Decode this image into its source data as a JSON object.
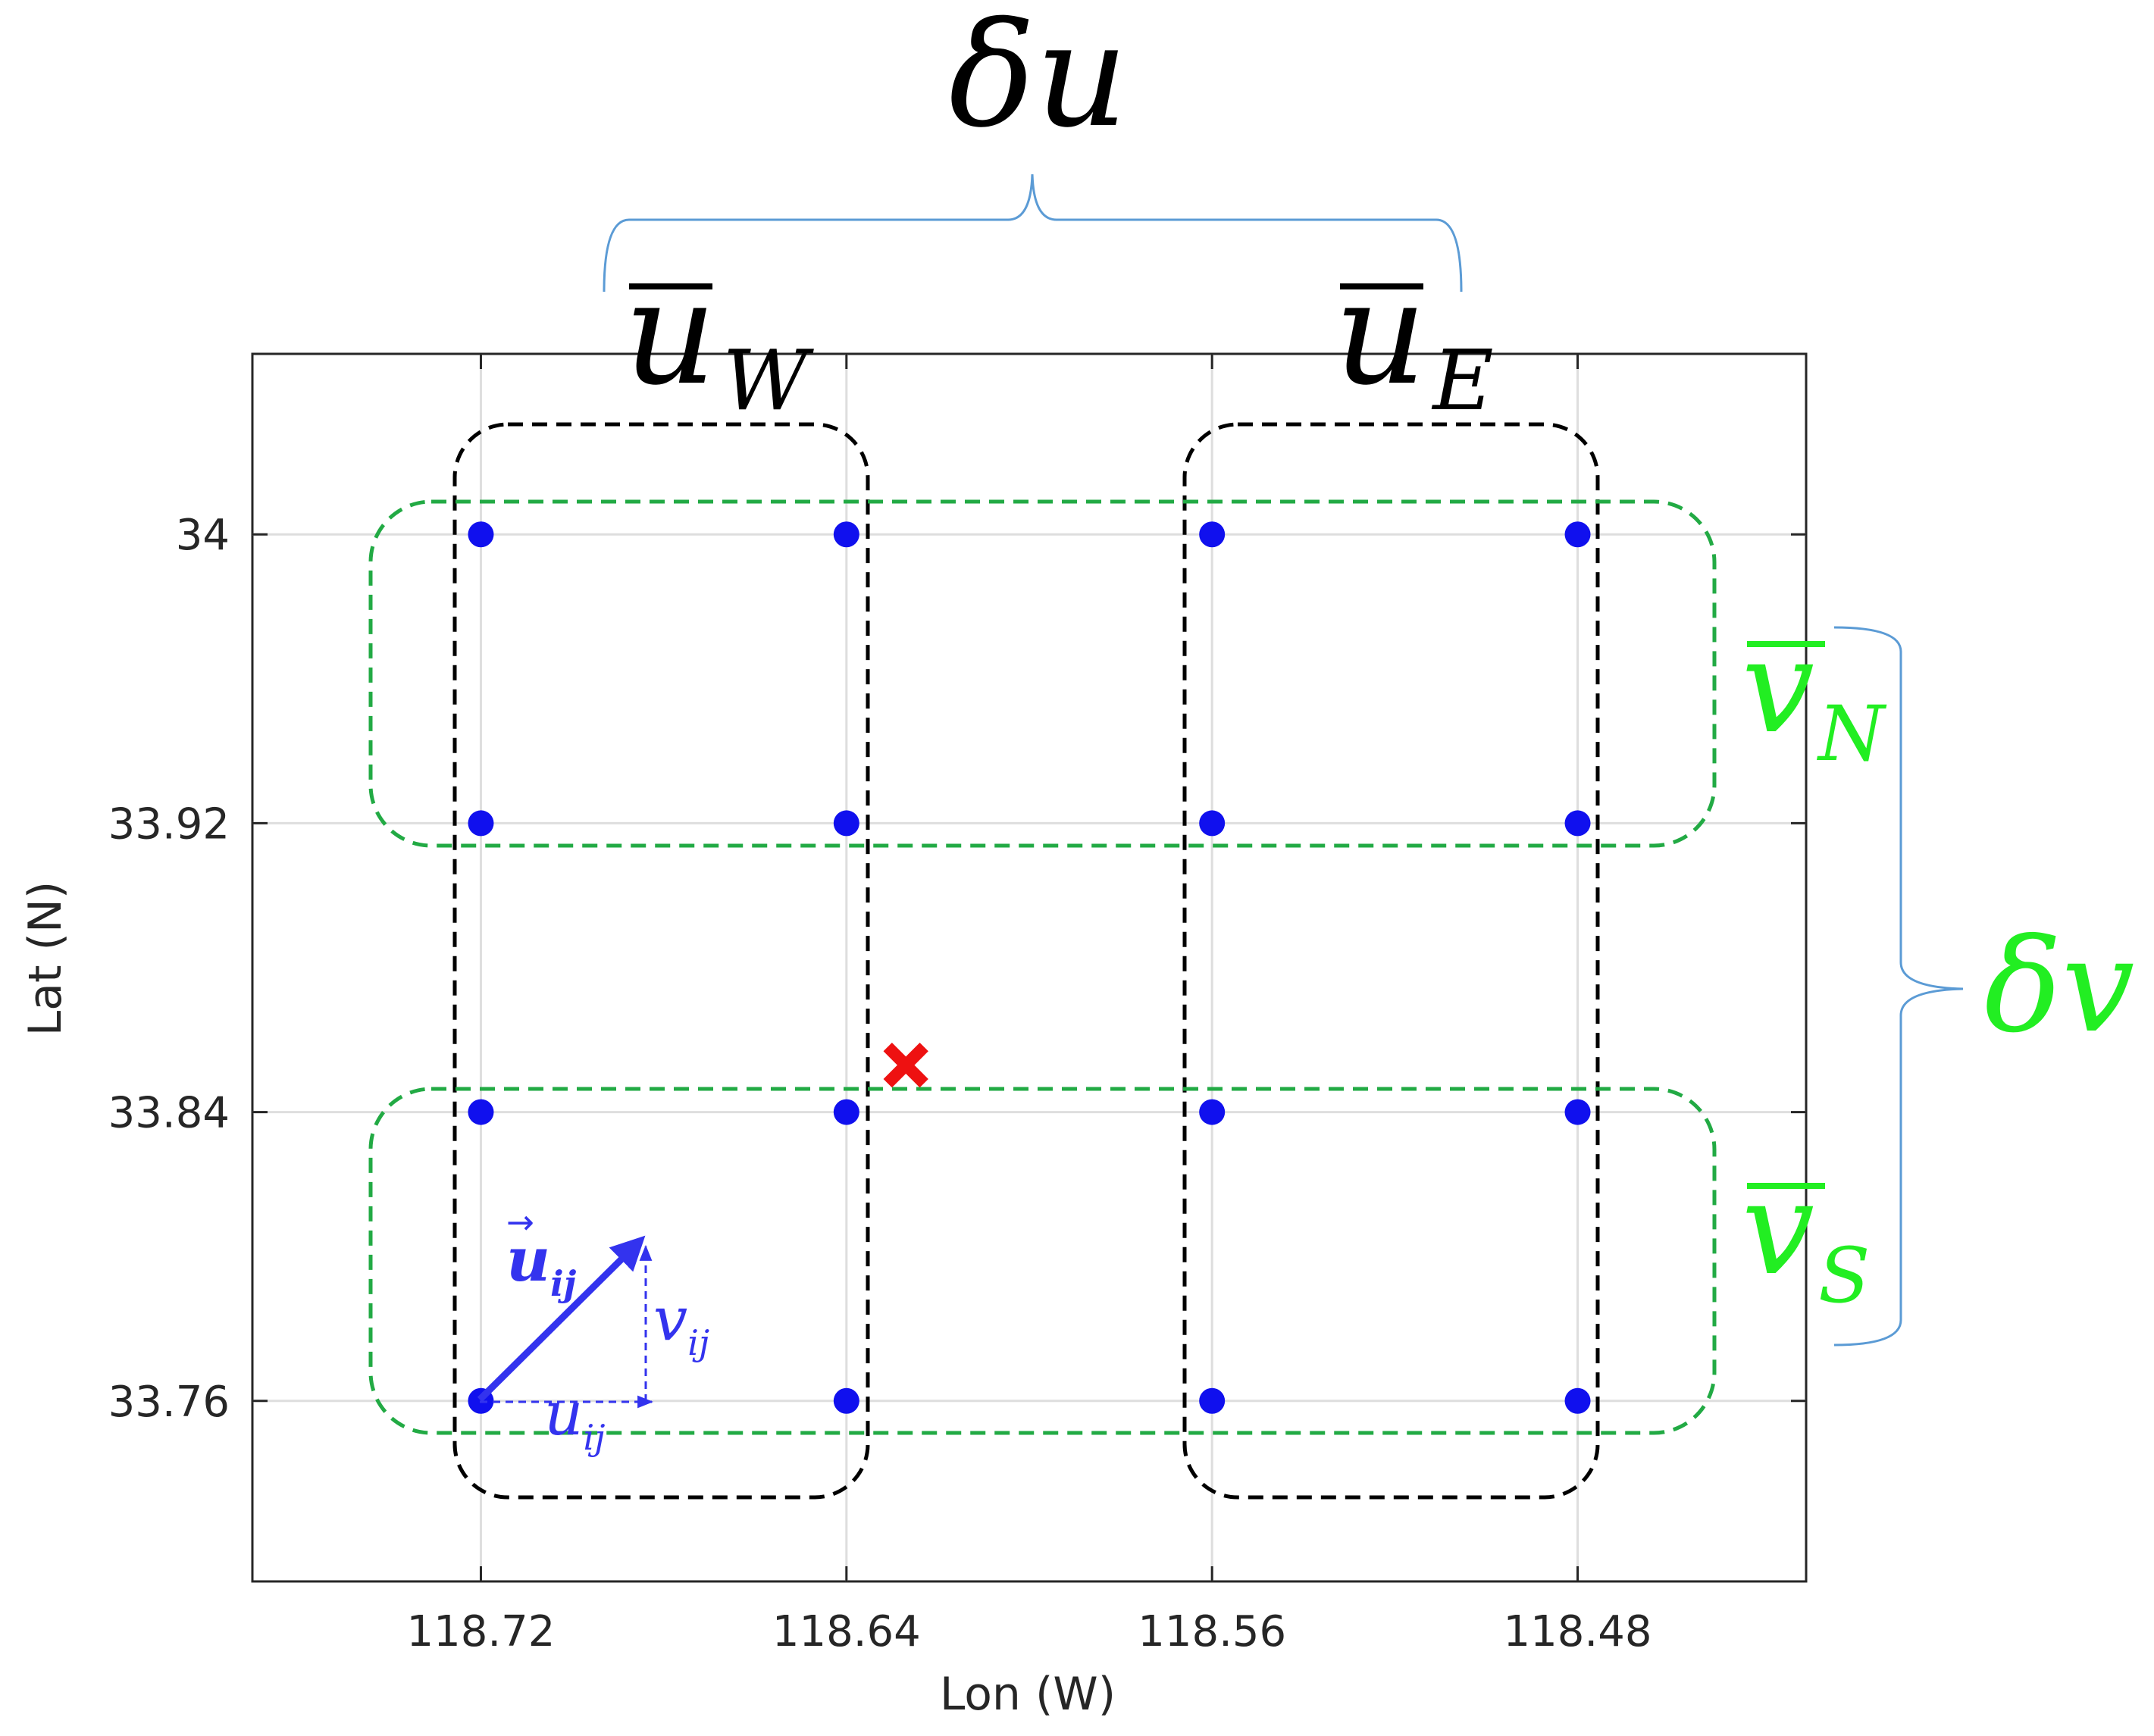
{
  "chart_data": {
    "type": "scatter",
    "xlabel": "Lon (W)",
    "ylabel": "Lat (N)",
    "x_ticks": [
      "118.72",
      "118.64",
      "118.56",
      "118.48"
    ],
    "y_ticks": [
      "34",
      "33.92",
      "33.84",
      "33.76"
    ],
    "xlim": [
      118.77,
      118.43
    ],
    "ylim": [
      33.71,
      34.05
    ],
    "x_reversed": true,
    "grid": true,
    "points": {
      "color": "#1010ee",
      "lon": [
        118.72,
        118.64,
        118.56,
        118.48
      ],
      "lat": [
        34.0,
        33.92,
        33.84,
        33.76
      ]
    },
    "target": {
      "lon": 118.627,
      "lat": 33.853,
      "color": "#ee1111",
      "marker": "x"
    },
    "groups": {
      "west_color": "#000000",
      "north_south_color": "#22aa44"
    },
    "annotations": {
      "delta_u": {
        "sym": "δ",
        "var": "u"
      },
      "u_west": {
        "var": "u",
        "sub": "W"
      },
      "u_east": {
        "var": "u",
        "sub": "E"
      },
      "delta_v": {
        "sym": "δ",
        "var": "v"
      },
      "v_north": {
        "var": "v",
        "sub": "N"
      },
      "v_south": {
        "var": "v",
        "sub": "S"
      },
      "vector_u": {
        "var": "u",
        "sub": "ij"
      },
      "component_u": {
        "var": "u",
        "sub": "ij"
      },
      "component_v": {
        "var": "v",
        "sub": "ij"
      },
      "brace_color": "#5b9bd5",
      "vector_color": "#3333ee"
    }
  }
}
